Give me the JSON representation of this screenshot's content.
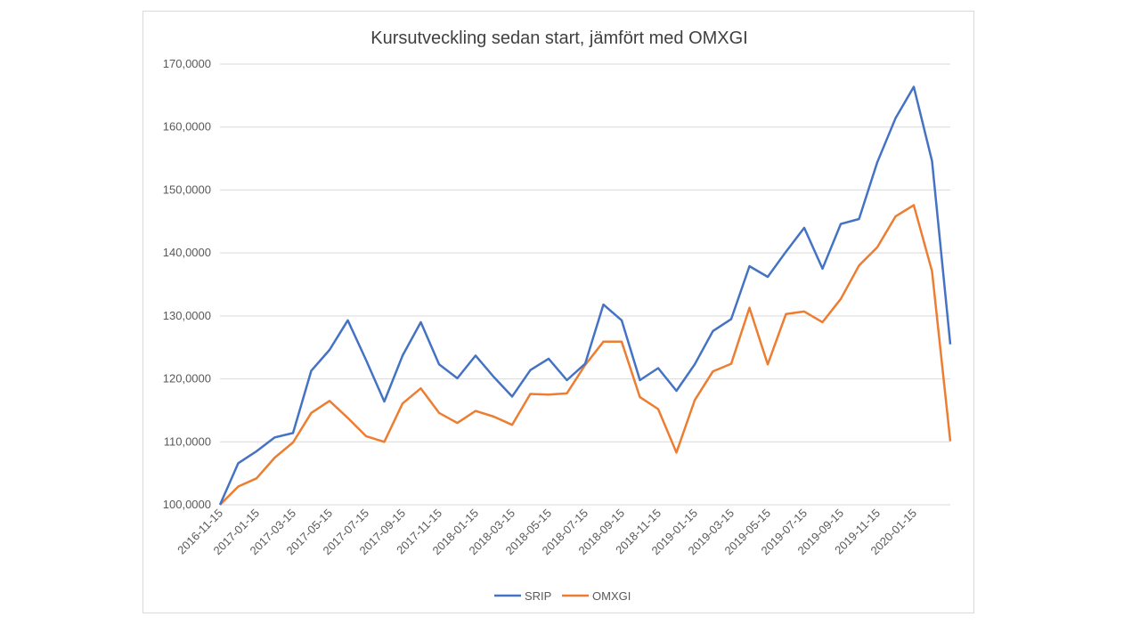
{
  "chart_data": {
    "type": "line",
    "title": "Kursutveckling sedan start, jämfört med OMXGI",
    "xlabel": "",
    "ylabel": "",
    "ylim": [
      100,
      170
    ],
    "y_ticks": [
      "100,0000",
      "110,0000",
      "120,0000",
      "130,0000",
      "140,0000",
      "150,0000",
      "160,0000",
      "170,0000"
    ],
    "grid": true,
    "legend_position": "bottom",
    "x": [
      "2016-11-15",
      "2016-12-15",
      "2017-01-15",
      "2017-02-15",
      "2017-03-15",
      "2017-04-15",
      "2017-05-15",
      "2017-06-15",
      "2017-07-15",
      "2017-08-15",
      "2017-09-15",
      "2017-10-15",
      "2017-11-15",
      "2017-12-15",
      "2018-01-15",
      "2018-02-15",
      "2018-03-15",
      "2018-04-15",
      "2018-05-15",
      "2018-06-15",
      "2018-07-15",
      "2018-08-15",
      "2018-09-15",
      "2018-10-15",
      "2018-11-15",
      "2018-12-15",
      "2019-01-15",
      "2019-02-15",
      "2019-03-15",
      "2019-04-15",
      "2019-05-15",
      "2019-06-15",
      "2019-07-15",
      "2019-08-15",
      "2019-09-15",
      "2019-10-15",
      "2019-11-15",
      "2019-12-15",
      "2020-01-15",
      "2020-02-15",
      "2020-03-15"
    ],
    "x_tick_labels": [
      "2016-11-15",
      "2017-01-15",
      "2017-03-15",
      "2017-05-15",
      "2017-07-15",
      "2017-09-15",
      "2017-11-15",
      "2018-01-15",
      "2018-03-15",
      "2018-05-15",
      "2018-07-15",
      "2018-09-15",
      "2018-11-15",
      "2019-01-15",
      "2019-03-15",
      "2019-05-15",
      "2019-07-15",
      "2019-09-15",
      "2019-11-15",
      "2020-01-15"
    ],
    "series": [
      {
        "name": "SRIP",
        "color": "#4472c4",
        "values": [
          100.0,
          106.6,
          108.5,
          110.7,
          111.4,
          121.3,
          124.6,
          129.3,
          123.0,
          116.4,
          123.7,
          129.0,
          122.3,
          120.1,
          123.7,
          120.3,
          117.2,
          121.4,
          123.2,
          119.8,
          122.4,
          131.8,
          129.3,
          119.8,
          121.7,
          118.1,
          122.3,
          127.6,
          129.5,
          137.9,
          136.2,
          140.2,
          144.0,
          137.5,
          144.6,
          145.4,
          154.4,
          161.4,
          166.4,
          154.6,
          125.5
        ]
      },
      {
        "name": "OMXGI",
        "color": "#ed7d31",
        "values": [
          100.0,
          102.9,
          104.2,
          107.5,
          109.9,
          114.6,
          116.5,
          113.8,
          110.9,
          110.0,
          116.1,
          118.5,
          114.6,
          113.0,
          114.9,
          114.0,
          112.7,
          117.6,
          117.5,
          117.7,
          122.2,
          125.9,
          125.9,
          117.1,
          115.2,
          108.3,
          116.6,
          121.2,
          122.4,
          131.3,
          122.3,
          130.3,
          130.7,
          129.0,
          132.7,
          138.0,
          140.9,
          145.8,
          147.6,
          137.1,
          110.1
        ]
      }
    ]
  }
}
